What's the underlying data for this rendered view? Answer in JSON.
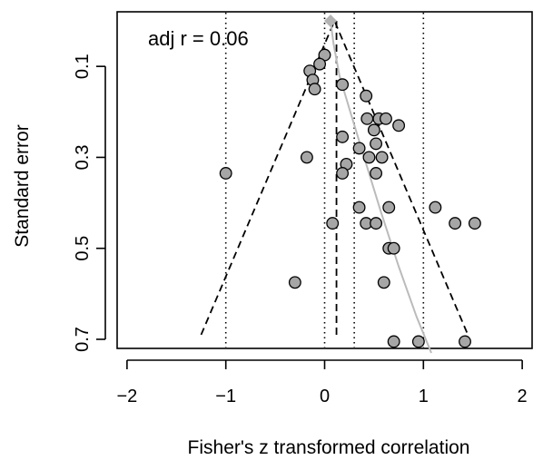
{
  "chart_data": {
    "type": "scatter",
    "subtype": "funnel plot",
    "xlabel": "Fisher's z transformed correlation",
    "ylabel": "Standard error",
    "annotation": "adj r = 0.06",
    "xlim": [
      -2.1,
      2.1
    ],
    "ylim": [
      0.72,
      -0.02
    ],
    "y_reversed": true,
    "x_ticks": [
      -2,
      -1,
      0,
      1,
      2
    ],
    "y_ticks": [
      0.1,
      0.3,
      0.5,
      0.7
    ],
    "grid": false,
    "reference_lines": {
      "dotted_vertical_x": [
        -1,
        0,
        0.3,
        1
      ],
      "dashed_vertical": {
        "x": 0.12,
        "y_from": 0.0,
        "y_to": 0.69
      },
      "dashed_funnel": {
        "apex": [
          0.1,
          0.0
        ],
        "left_bottom": [
          -1.25,
          0.69
        ],
        "right_bottom": [
          1.45,
          0.69
        ]
      },
      "regression_curve": {
        "color": "#bbbbbb",
        "points": [
          [
            0.06,
            0.0
          ],
          [
            0.09,
            0.05
          ],
          [
            0.15,
            0.12
          ],
          [
            0.26,
            0.2
          ],
          [
            0.4,
            0.3
          ],
          [
            0.57,
            0.42
          ],
          [
            0.75,
            0.54
          ],
          [
            0.93,
            0.65
          ],
          [
            1.08,
            0.73
          ]
        ]
      }
    },
    "adjusted_estimate": {
      "x": 0.06,
      "y": 0.0,
      "marker": "diamond",
      "color": "#b3b3b3"
    },
    "points": {
      "marker_color": "#a6a6a6",
      "x": [
        0.0,
        -0.05,
        -0.15,
        -0.12,
        -0.1,
        0.18,
        0.42,
        0.43,
        0.55,
        0.62,
        0.5,
        0.75,
        0.18,
        0.52,
        0.35,
        0.22,
        0.45,
        0.58,
        -0.18,
        0.18,
        0.52,
        -1.0,
        0.35,
        0.65,
        1.12,
        0.08,
        0.42,
        0.52,
        1.32,
        1.52,
        0.65,
        0.7,
        -0.3,
        0.6,
        0.7,
        0.95,
        1.42
      ],
      "y": [
        0.075,
        0.095,
        0.11,
        0.13,
        0.15,
        0.14,
        0.165,
        0.215,
        0.215,
        0.215,
        0.24,
        0.23,
        0.255,
        0.27,
        0.28,
        0.315,
        0.3,
        0.3,
        0.3,
        0.335,
        0.335,
        0.335,
        0.41,
        0.41,
        0.41,
        0.445,
        0.445,
        0.445,
        0.445,
        0.445,
        0.5,
        0.5,
        0.575,
        0.575,
        0.705,
        0.705,
        0.705
      ]
    }
  }
}
